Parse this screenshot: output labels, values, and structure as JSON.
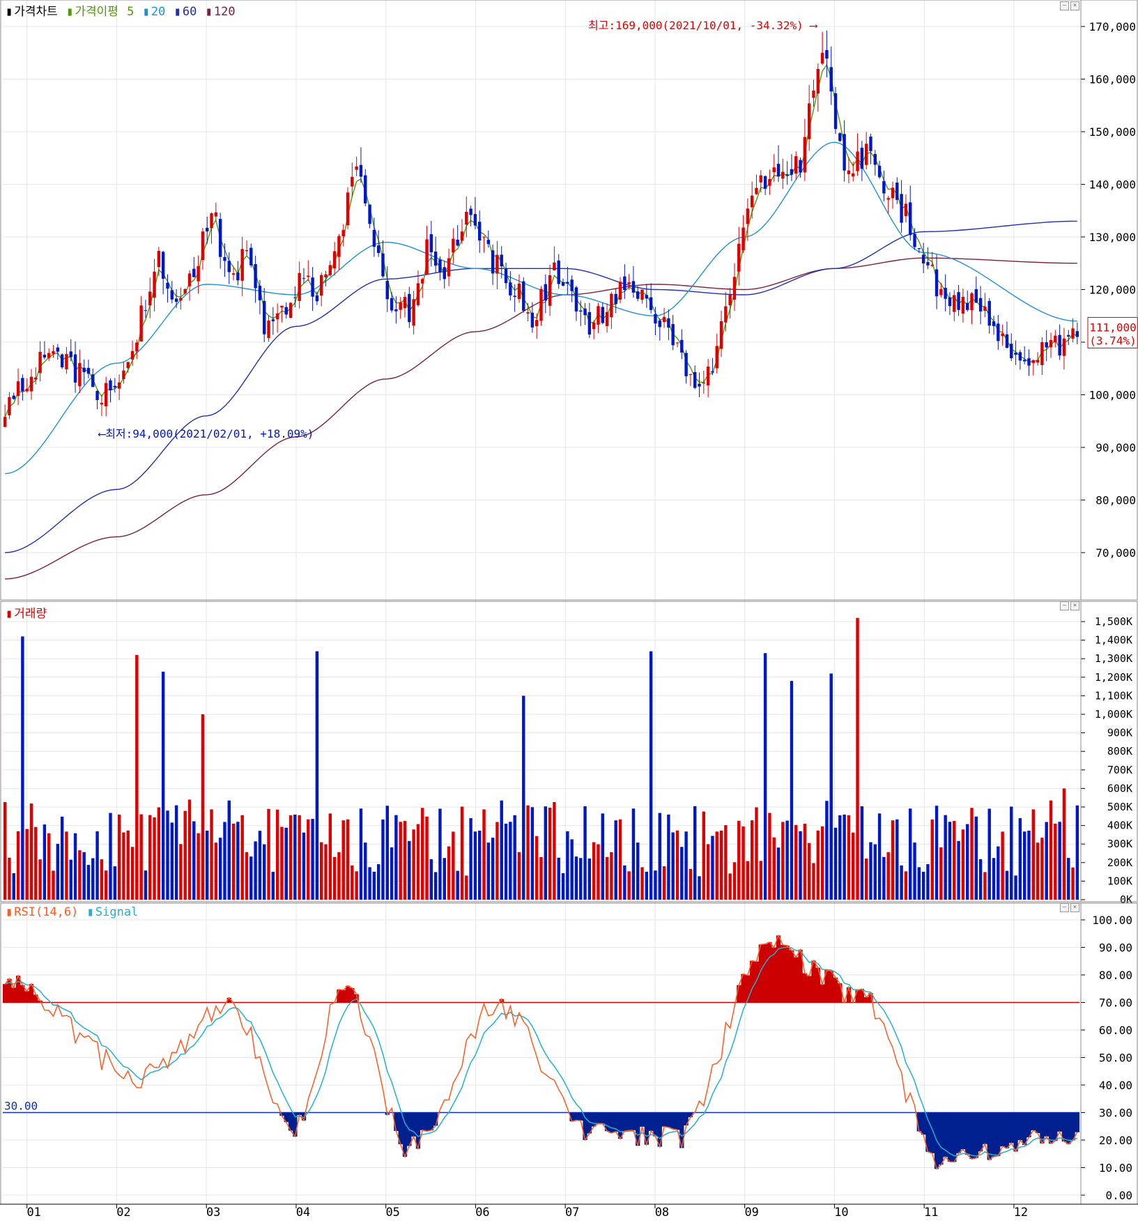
{
  "price_panel": {
    "legend": {
      "title": "가격차트",
      "ma_label": "가격이평",
      "ma_periods": [
        "5",
        "20",
        "60",
        "120"
      ]
    },
    "high_annotation": "최고:169,000(2021/10/01, -34.32%)",
    "low_annotation": "최저:94,000(2021/02/01, +18.09%)",
    "last_price_label": "111,000",
    "last_change_label": "(3.74%)",
    "y_ticks": [
      "170,000",
      "160,000",
      "150,000",
      "140,000",
      "130,000",
      "120,000",
      "110,000",
      "100,000",
      "90,000",
      "80,000",
      "70,000"
    ]
  },
  "volume_panel": {
    "legend": {
      "title": "거래량"
    },
    "y_ticks": [
      "1,500K",
      "1,400K",
      "1,300K",
      "1,200K",
      "1,100K",
      "1,000K",
      "900K",
      "800K",
      "700K",
      "600K",
      "500K",
      "400K",
      "300K",
      "200K",
      "100K",
      "0K"
    ]
  },
  "rsi_panel": {
    "legend": {
      "title": "RSI(14,6)",
      "signal": "Signal"
    },
    "level_label": "30.00",
    "y_ticks": [
      "100.00",
      "90.00",
      "80.00",
      "70.00",
      "60.00",
      "50.00",
      "40.00",
      "30.00",
      "20.00",
      "10.00",
      "0.00"
    ]
  },
  "x_ticks": [
    "01",
    "02",
    "03",
    "04",
    "05",
    "06",
    "07",
    "08",
    "09",
    "10",
    "11",
    "12"
  ],
  "colors": {
    "up": "#e00000",
    "down": "#0018c8",
    "ma5": "#4e9a06",
    "ma20": "#1e90d8",
    "ma60": "#1f2fb0",
    "ma120": "#7a2040",
    "rsi": "#ff5a20",
    "signal": "#20b0d0",
    "overbought_fill": "#cc0000",
    "oversold_fill": "#002090",
    "grid": "#e6e6e6"
  },
  "chart_data": [
    {
      "type": "candlestick",
      "period": "2021-01 to 2021-12 (daily)",
      "ylim": [
        63000,
        174000
      ],
      "high_point": {
        "value": 169000,
        "date": "2021/10/01"
      },
      "low_point": {
        "value": 94000,
        "date": "2021/02/01"
      },
      "last_close": 111000,
      "last_change_pct": 3.74,
      "close_anchors": [
        {
          "month": "01",
          "close": 98000
        },
        {
          "month": "01",
          "close": 108000
        },
        {
          "month": "01",
          "close": 104000
        },
        {
          "month": "02",
          "close": 100000
        },
        {
          "month": "02",
          "close": 104000
        },
        {
          "month": "02",
          "close": 115000
        },
        {
          "month": "02",
          "close": 126000
        },
        {
          "month": "02",
          "close": 118000
        },
        {
          "month": "03",
          "close": 123000
        },
        {
          "month": "03",
          "close": 136000
        },
        {
          "month": "03",
          "close": 122000
        },
        {
          "month": "03",
          "close": 126000
        },
        {
          "month": "03",
          "close": 113000
        },
        {
          "month": "04",
          "close": 116000
        },
        {
          "month": "04",
          "close": 122000
        },
        {
          "month": "04",
          "close": 118000
        },
        {
          "month": "04",
          "close": 130000
        },
        {
          "month": "04",
          "close": 145000
        },
        {
          "month": "05",
          "close": 128000
        },
        {
          "month": "05",
          "close": 118000
        },
        {
          "month": "05",
          "close": 116000
        },
        {
          "month": "05",
          "close": 127000
        },
        {
          "month": "05",
          "close": 123000
        },
        {
          "month": "06",
          "close": 134000
        },
        {
          "month": "06",
          "close": 130000
        },
        {
          "month": "06",
          "close": 124000
        },
        {
          "month": "06",
          "close": 120000
        },
        {
          "month": "06",
          "close": 114000
        },
        {
          "month": "07",
          "close": 123000
        },
        {
          "month": "07",
          "close": 120000
        },
        {
          "month": "07",
          "close": 113000
        },
        {
          "month": "07",
          "close": 117000
        },
        {
          "month": "07",
          "close": 122000
        },
        {
          "month": "08",
          "close": 118000
        },
        {
          "month": "08",
          "close": 113000
        },
        {
          "month": "08",
          "close": 103000
        },
        {
          "month": "08",
          "close": 105000
        },
        {
          "month": "09",
          "close": 124000
        },
        {
          "month": "09",
          "close": 139000
        },
        {
          "month": "09",
          "close": 143000
        },
        {
          "month": "09",
          "close": 144000
        },
        {
          "month": "10",
          "close": 165000
        },
        {
          "month": "10",
          "close": 142000
        },
        {
          "month": "10",
          "close": 145000
        },
        {
          "month": "10",
          "close": 139000
        },
        {
          "month": "11",
          "close": 128000
        },
        {
          "month": "11",
          "close": 118000
        },
        {
          "month": "11",
          "close": 117000
        },
        {
          "month": "12",
          "close": 106000
        },
        {
          "month": "12",
          "close": 111000
        }
      ],
      "moving_averages": {
        "ma20": [
          {
            "month": "01",
            "value": 85000
          },
          {
            "month": "02",
            "value": 106000
          },
          {
            "month": "03",
            "value": 121000
          },
          {
            "month": "04",
            "value": 119000
          },
          {
            "month": "05",
            "value": 129000
          },
          {
            "month": "06",
            "value": 124000
          },
          {
            "month": "07",
            "value": 119000
          },
          {
            "month": "08",
            "value": 115000
          },
          {
            "month": "09",
            "value": 130000
          },
          {
            "month": "10",
            "value": 148000
          },
          {
            "month": "11",
            "value": 127000
          },
          {
            "month": "12",
            "value": 114000
          }
        ],
        "ma60": [
          {
            "month": "01",
            "value": 70000
          },
          {
            "month": "02",
            "value": 82000
          },
          {
            "month": "03",
            "value": 96000
          },
          {
            "month": "04",
            "value": 113000
          },
          {
            "month": "05",
            "value": 122000
          },
          {
            "month": "06",
            "value": 124000
          },
          {
            "month": "07",
            "value": 124000
          },
          {
            "month": "08",
            "value": 120000
          },
          {
            "month": "09",
            "value": 119000
          },
          {
            "month": "10",
            "value": 124000
          },
          {
            "month": "11",
            "value": 131000
          },
          {
            "month": "12",
            "value": 133000
          }
        ],
        "ma120": [
          {
            "month": "01",
            "value": 65000
          },
          {
            "month": "02",
            "value": 73000
          },
          {
            "month": "03",
            "value": 81000
          },
          {
            "month": "04",
            "value": 92000
          },
          {
            "month": "05",
            "value": 103000
          },
          {
            "month": "06",
            "value": 112000
          },
          {
            "month": "07",
            "value": 119000
          },
          {
            "month": "08",
            "value": 121000
          },
          {
            "month": "09",
            "value": 120000
          },
          {
            "month": "10",
            "value": 124000
          },
          {
            "month": "11",
            "value": 126000
          },
          {
            "month": "12",
            "value": 125000
          }
        ]
      }
    },
    {
      "type": "bar",
      "name": "거래량",
      "ylim": [
        0,
        1550000
      ],
      "notable_bars": [
        {
          "month": "01",
          "value": 1420000
        },
        {
          "month": "02",
          "value": 1320000
        },
        {
          "month": "02",
          "value": 1230000
        },
        {
          "month": "03",
          "value": 1000000
        },
        {
          "month": "04",
          "value": 1340000
        },
        {
          "month": "06",
          "value": 1100000
        },
        {
          "month": "08",
          "value": 1340000
        },
        {
          "month": "09",
          "value": 1330000
        },
        {
          "month": "09",
          "value": 1180000
        },
        {
          "month": "10",
          "value": 1220000
        },
        {
          "month": "10",
          "value": 1520000
        },
        {
          "month": "12",
          "value": 600000
        }
      ]
    },
    {
      "type": "line",
      "name": "RSI(14,6)",
      "ylim": [
        0,
        100
      ],
      "levels": [
        70,
        30
      ],
      "rsi_anchors": [
        {
          "month": "01",
          "value": 77
        },
        {
          "month": "02",
          "value": 43
        },
        {
          "month": "03",
          "value": 68
        },
        {
          "month": "04",
          "value": 25
        },
        {
          "month": "04",
          "value": 76
        },
        {
          "month": "05",
          "value": 17
        },
        {
          "month": "06",
          "value": 69
        },
        {
          "month": "07",
          "value": 24
        },
        {
          "month": "08",
          "value": 21
        },
        {
          "month": "09",
          "value": 91
        },
        {
          "month": "10",
          "value": 73
        },
        {
          "month": "11",
          "value": 12
        },
        {
          "month": "12",
          "value": 22
        }
      ]
    }
  ]
}
